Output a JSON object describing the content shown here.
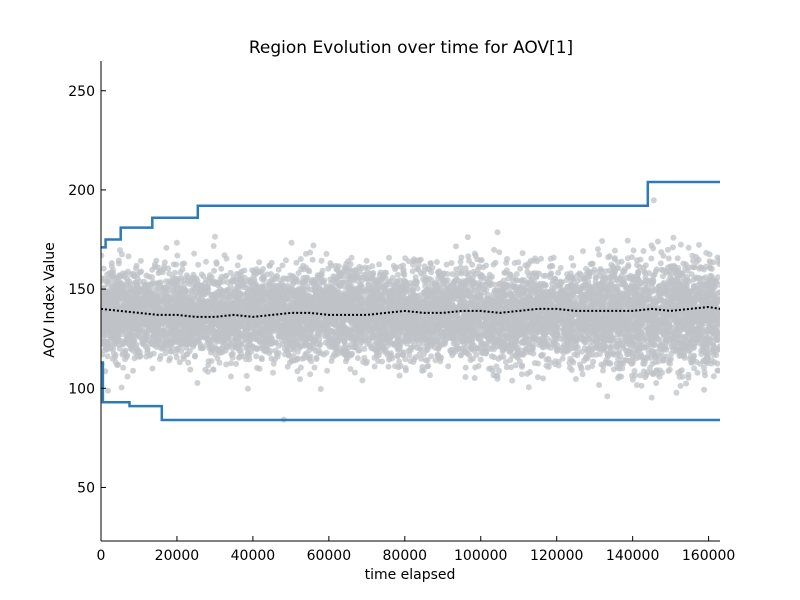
{
  "chart_data": {
    "type": "scatter",
    "title": "Region Evolution over time for AOV[1]",
    "xlabel": "time elapsed",
    "ylabel": "AOV Index Value",
    "xlim": [
      0,
      163000
    ],
    "ylim": [
      23,
      265
    ],
    "x_ticks": [
      0,
      20000,
      40000,
      60000,
      80000,
      100000,
      120000,
      140000,
      160000
    ],
    "x_tick_labels": [
      "0",
      "20000",
      "40000",
      "60000",
      "80000",
      "100000",
      "120000",
      "140000",
      "160000"
    ],
    "y_ticks": [
      50,
      100,
      150,
      200,
      250
    ],
    "y_tick_labels": [
      "50",
      "100",
      "150",
      "200",
      "250"
    ],
    "grid": false,
    "colors": {
      "points": "#bfc3c7",
      "bounds": "#2c7bb6",
      "mean": "#000000"
    },
    "scatter_band": {
      "description": "dense cloud of individual AOV samples",
      "center": 137,
      "typical_spread": [
        105,
        170
      ],
      "outliers_range": [
        84,
        204
      ]
    },
    "series": [
      {
        "name": "upper bound",
        "step": true,
        "x": [
          0,
          1200,
          1200,
          5200,
          5200,
          13500,
          13500,
          25500,
          25500,
          144000,
          144000,
          163000
        ],
        "y": [
          171,
          171,
          175,
          175,
          181,
          181,
          186,
          186,
          192,
          192,
          204,
          204
        ]
      },
      {
        "name": "lower bound",
        "step": true,
        "x": [
          0,
          500,
          500,
          7500,
          7500,
          16000,
          16000,
          163000
        ],
        "y": [
          113,
          113,
          93,
          93,
          91,
          91,
          84,
          84
        ]
      },
      {
        "name": "moving mean",
        "style": "dotted",
        "x": [
          0,
          5000,
          10000,
          15000,
          20000,
          25000,
          30000,
          35000,
          40000,
          45000,
          50000,
          55000,
          60000,
          65000,
          70000,
          75000,
          80000,
          85000,
          90000,
          95000,
          100000,
          105000,
          110000,
          115000,
          120000,
          125000,
          130000,
          135000,
          140000,
          145000,
          150000,
          155000,
          160000,
          163000
        ],
        "y": [
          140,
          139,
          138,
          137,
          137,
          136,
          136,
          137,
          136,
          137,
          138,
          138,
          137,
          137,
          137,
          138,
          139,
          138,
          138,
          139,
          139,
          138,
          139,
          140,
          140,
          139,
          139,
          139,
          139,
          140,
          139,
          140,
          141,
          140
        ]
      }
    ]
  }
}
